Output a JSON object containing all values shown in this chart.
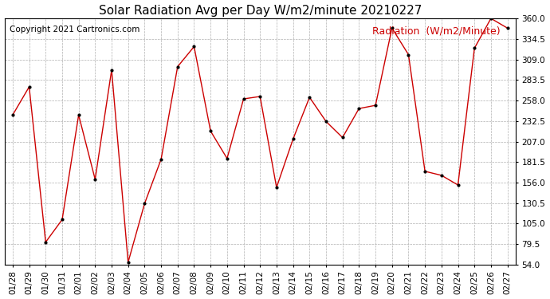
{
  "title": "Solar Radiation Avg per Day W/m2/minute 20210227",
  "copyright": "Copyright 2021 Cartronics.com",
  "legend_label": "Radiation  (W/m2/Minute)",
  "dates": [
    "01/28",
    "01/29",
    "01/30",
    "01/31",
    "02/01",
    "02/02",
    "02/03",
    "02/04",
    "02/05",
    "02/06",
    "02/07",
    "02/08",
    "02/09",
    "02/10",
    "02/11",
    "02/12",
    "02/13",
    "02/14",
    "02/15",
    "02/16",
    "02/17",
    "02/18",
    "02/19",
    "02/20",
    "02/21",
    "02/22",
    "02/23",
    "02/24",
    "02/25",
    "02/26",
    "02/27"
  ],
  "values": [
    240,
    275,
    82,
    110,
    240,
    160,
    296,
    57,
    130,
    185,
    300,
    325,
    220,
    186,
    260,
    263,
    150,
    210,
    262,
    232,
    212,
    248,
    252,
    348,
    315,
    170,
    165,
    153,
    323,
    360,
    348
  ],
  "line_color": "#cc0000",
  "marker_color": "#000000",
  "background_color": "#ffffff",
  "grid_color": "#b0b0b0",
  "ylim": [
    54.0,
    360.0
  ],
  "yticks": [
    54.0,
    79.5,
    105.0,
    130.5,
    156.0,
    181.5,
    207.0,
    232.5,
    258.0,
    283.5,
    309.0,
    334.5,
    360.0
  ],
  "title_fontsize": 11,
  "copyright_fontsize": 7.5,
  "legend_fontsize": 9,
  "tick_fontsize": 7.5
}
